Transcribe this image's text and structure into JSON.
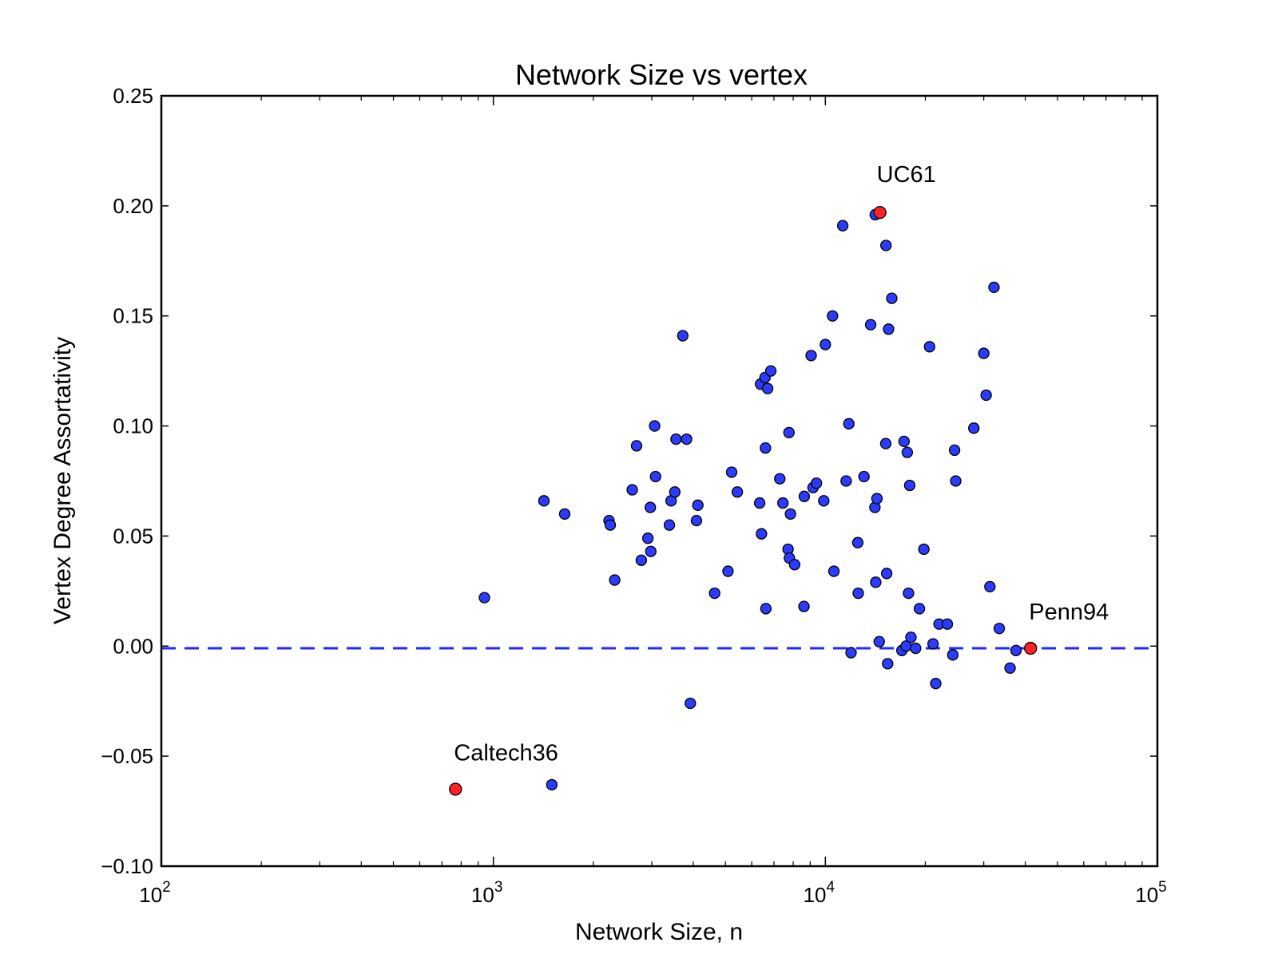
{
  "chart_data": {
    "type": "scatter",
    "title": "Network Size vs vertex",
    "xlabel": "Network Size, n",
    "ylabel": "Vertex Degree Assortativity",
    "xscale": "log",
    "xlim": [
      100,
      100000
    ],
    "ylim": [
      -0.1,
      0.25
    ],
    "x_ticks": [
      {
        "base": "10",
        "exp": "2"
      },
      {
        "base": "10",
        "exp": "3"
      },
      {
        "base": "10",
        "exp": "4"
      },
      {
        "base": "10",
        "exp": "5"
      }
    ],
    "y_ticks": [
      "0.25",
      "0.20",
      "0.15",
      "0.10",
      "0.05",
      "0.00",
      "−0.05",
      "−0.10"
    ],
    "y_tick_values": [
      0.25,
      0.2,
      0.15,
      0.1,
      0.05,
      0.0,
      -0.05,
      -0.1
    ],
    "reference_line": {
      "y": -0.001,
      "style": "dashed",
      "color": "#1f2bff"
    },
    "point_color": "#2b3bff",
    "highlight_color": "#ff2222",
    "points": [
      [
        940,
        0.022
      ],
      [
        1420,
        0.066
      ],
      [
        1640,
        0.06
      ],
      [
        1500,
        -0.063
      ],
      [
        2230,
        0.057
      ],
      [
        2250,
        0.055
      ],
      [
        2320,
        0.03
      ],
      [
        2620,
        0.071
      ],
      [
        2700,
        0.091
      ],
      [
        2790,
        0.039
      ],
      [
        2920,
        0.049
      ],
      [
        2970,
        0.063
      ],
      [
        2980,
        0.043
      ],
      [
        3060,
        0.1
      ],
      [
        3080,
        0.077
      ],
      [
        3390,
        0.055
      ],
      [
        3430,
        0.066
      ],
      [
        3520,
        0.07
      ],
      [
        3550,
        0.094
      ],
      [
        3720,
        0.141
      ],
      [
        3820,
        0.094
      ],
      [
        3920,
        -0.026
      ],
      [
        4090,
        0.057
      ],
      [
        4130,
        0.064
      ],
      [
        4640,
        0.024
      ],
      [
        5090,
        0.034
      ],
      [
        5220,
        0.079
      ],
      [
        5430,
        0.07
      ],
      [
        6340,
        0.065
      ],
      [
        6380,
        0.119
      ],
      [
        6420,
        0.051
      ],
      [
        6580,
        0.122
      ],
      [
        6600,
        0.09
      ],
      [
        6620,
        0.017
      ],
      [
        6700,
        0.117
      ],
      [
        6850,
        0.125
      ],
      [
        7290,
        0.076
      ],
      [
        7450,
        0.065
      ],
      [
        7720,
        0.044
      ],
      [
        7770,
        0.097
      ],
      [
        7790,
        0.04
      ],
      [
        7850,
        0.06
      ],
      [
        8080,
        0.037
      ],
      [
        8620,
        0.018
      ],
      [
        8640,
        0.068
      ],
      [
        9060,
        0.132
      ],
      [
        9180,
        0.072
      ],
      [
        9400,
        0.074
      ],
      [
        9890,
        0.066
      ],
      [
        10000,
        0.137
      ],
      [
        10510,
        0.15
      ],
      [
        10610,
        0.034
      ],
      [
        11280,
        0.191
      ],
      [
        11550,
        0.075
      ],
      [
        11770,
        0.101
      ],
      [
        11950,
        -0.003
      ],
      [
        12520,
        0.047
      ],
      [
        12560,
        0.024
      ],
      [
        13070,
        0.077
      ],
      [
        13690,
        0.146
      ],
      [
        14100,
        0.063
      ],
      [
        14180,
        0.029
      ],
      [
        14300,
        0.067
      ],
      [
        14530,
        0.002
      ],
      [
        14130,
        0.196
      ],
      [
        15220,
        0.182
      ],
      [
        15200,
        0.092
      ],
      [
        15400,
        -0.008
      ],
      [
        15300,
        0.033
      ],
      [
        15500,
        0.144
      ],
      [
        15850,
        0.158
      ],
      [
        17000,
        -0.002
      ],
      [
        17260,
        0.093
      ],
      [
        17500,
        0.0
      ],
      [
        17650,
        0.088
      ],
      [
        17800,
        0.024
      ],
      [
        17950,
        0.073
      ],
      [
        18100,
        0.004
      ],
      [
        18700,
        -0.001
      ],
      [
        19200,
        0.017
      ],
      [
        19800,
        0.044
      ],
      [
        20600,
        0.136
      ],
      [
        21100,
        0.001
      ],
      [
        21500,
        -0.017
      ],
      [
        22000,
        0.01
      ],
      [
        23300,
        0.01
      ],
      [
        24200,
        -0.004
      ],
      [
        24500,
        0.089
      ],
      [
        24700,
        0.075
      ],
      [
        28000,
        0.099
      ],
      [
        30000,
        0.133
      ],
      [
        30500,
        0.114
      ],
      [
        31300,
        0.027
      ],
      [
        32200,
        0.163
      ],
      [
        33400,
        0.008
      ],
      [
        36000,
        -0.01
      ],
      [
        37500,
        -0.002
      ]
    ],
    "highlighted": [
      {
        "name": "UC61",
        "x": 14600,
        "y": 0.197
      },
      {
        "name": "Penn94",
        "x": 41500,
        "y": -0.001
      },
      {
        "name": "Caltech36",
        "x": 769,
        "y": -0.065
      }
    ]
  }
}
